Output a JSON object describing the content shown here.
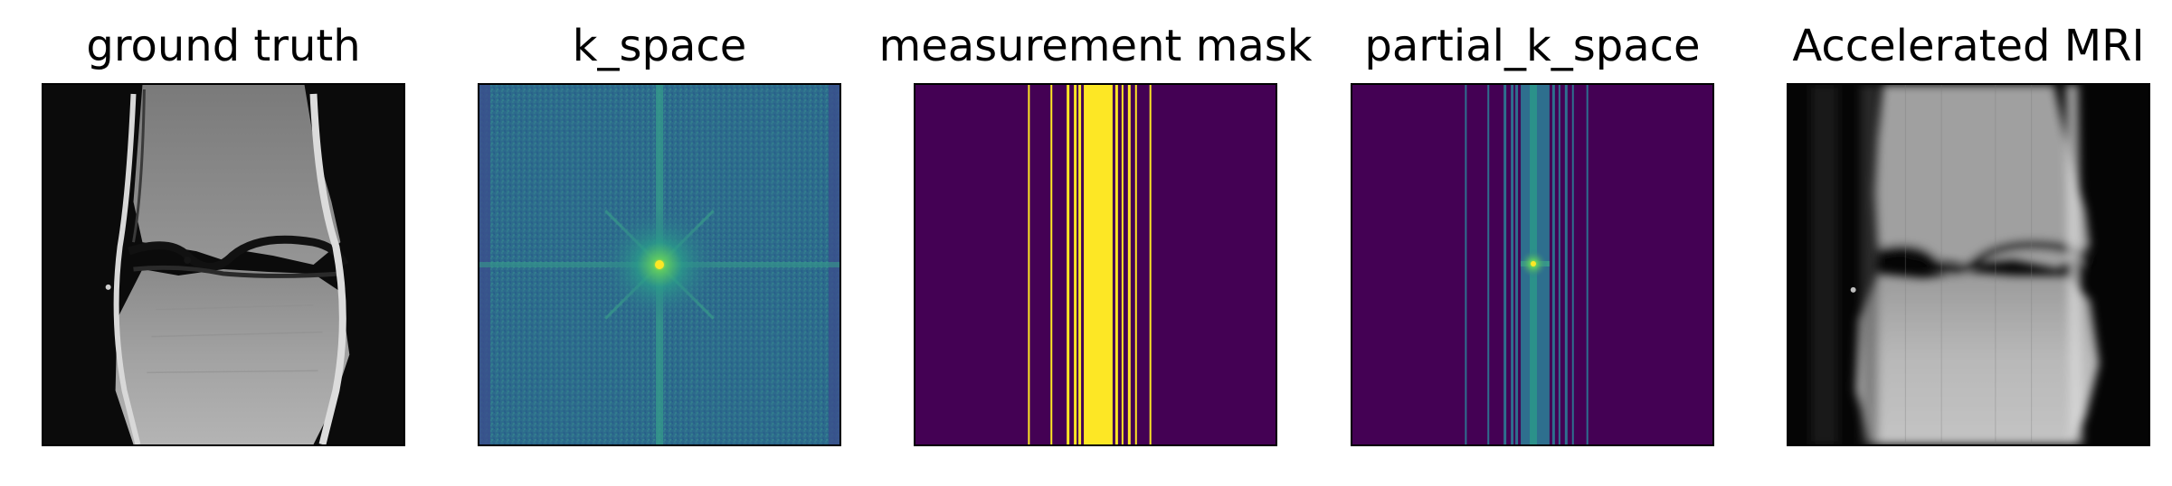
{
  "panels": [
    {
      "title": "ground truth"
    },
    {
      "title": "k_space"
    },
    {
      "title": "measurement mask"
    },
    {
      "title": "partial_k_space"
    },
    {
      "title": "Accelerated MRI"
    }
  ],
  "colors": {
    "viridis_background": "#440154",
    "viridis_yellow": "#fde725",
    "viridis_teal": "#2a788e",
    "viridis_green": "#35b779",
    "k_space_blue": "#2e6f8e",
    "frame": "#000000"
  }
}
